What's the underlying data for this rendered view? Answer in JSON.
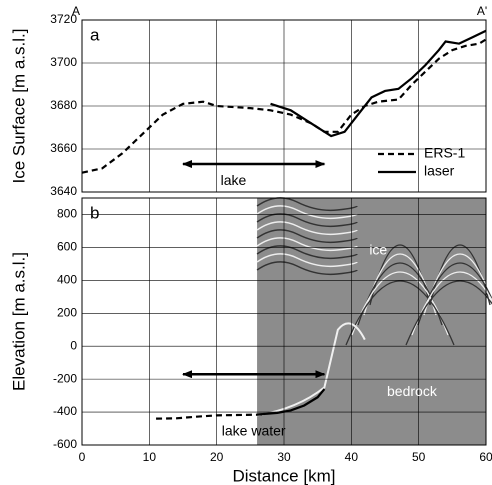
{
  "chart_data": [
    {
      "type": "line",
      "label": "a",
      "corner_left": "A",
      "corner_right": "A'",
      "ylabel": "Ice Surface [m a.s.l.]",
      "xlim": [
        0,
        60
      ],
      "xticks": [
        0,
        10,
        20,
        30,
        40,
        50,
        60
      ],
      "ylim": [
        3640,
        3720
      ],
      "yticks": [
        3640,
        3660,
        3680,
        3700,
        3720
      ],
      "grid": true,
      "legend": "lower right",
      "series": [
        {
          "name": "ERS-1",
          "color": "#000000",
          "dash": true,
          "x": [
            0,
            3,
            6,
            9,
            12,
            15,
            18,
            20,
            25,
            28,
            31,
            34,
            36,
            38,
            40,
            42,
            44,
            47,
            49,
            51,
            53,
            55,
            57,
            59,
            60
          ],
          "values": [
            3649,
            3651,
            3658,
            3667,
            3676,
            3681,
            3682,
            3680,
            3679,
            3678,
            3676,
            3672,
            3668,
            3668,
            3676,
            3680,
            3682,
            3683,
            3690,
            3696,
            3702,
            3706,
            3708,
            3709,
            3711
          ]
        },
        {
          "name": "laser",
          "color": "#000000",
          "dash": false,
          "x": [
            28,
            31,
            34,
            37,
            39,
            41,
            43,
            45,
            47,
            49,
            51,
            53,
            54,
            56,
            58,
            60
          ],
          "values": [
            3681,
            3678,
            3672,
            3666,
            3668,
            3676,
            3684,
            3687,
            3688,
            3693,
            3699,
            3706,
            3710,
            3709,
            3712,
            3715
          ]
        }
      ],
      "annotations": [
        "lake"
      ]
    },
    {
      "type": "line",
      "label": "b",
      "xlabel": "Distance [km]",
      "ylabel": "Elevation [m a.s.l.]",
      "xlim": [
        0,
        60
      ],
      "xticks": [
        0,
        10,
        20,
        30,
        40,
        50,
        60
      ],
      "ylim": [
        -600,
        900
      ],
      "yticks": [
        -600,
        -400,
        -200,
        0,
        200,
        400,
        600,
        800
      ],
      "grid": true,
      "series": [
        {
          "color": "#000000",
          "dash": true,
          "x": [
            11,
            14,
            17,
            20,
            23,
            26,
            27
          ],
          "values": [
            -440,
            -438,
            -428,
            -420,
            -418,
            -416,
            -414
          ]
        },
        {
          "color": "#000000",
          "dash": false,
          "x": [
            26,
            29,
            31,
            33,
            35,
            36
          ],
          "values": [
            -415,
            -405,
            -390,
            -360,
            -310,
            -260
          ]
        }
      ],
      "annotations": [
        "ice",
        "bedrock",
        "lake water"
      ]
    }
  ]
}
